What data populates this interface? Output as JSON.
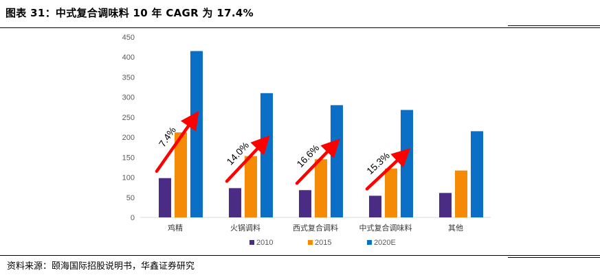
{
  "header": {
    "title": "图表 31：中式复合调味料 10 年 CAGR 为 17.4%"
  },
  "footer": {
    "source": "资料来源：颐海国际招股说明书，华鑫证券研究"
  },
  "colors": {
    "s2010": "#4B2C84",
    "s2015": "#F58A07",
    "s2020E": "#0B6FC6",
    "arrow": "#FF0000"
  },
  "chart_data": {
    "type": "bar",
    "categories": [
      "鸡精",
      "火锅调料",
      "西式复合调料",
      "中式复合调味料",
      "其他"
    ],
    "series": [
      {
        "name": "2010",
        "values": [
          98,
          73,
          68,
          54,
          61
        ]
      },
      {
        "name": "2015",
        "values": [
          212,
          153,
          145,
          122,
          117
        ]
      },
      {
        "name": "2020E",
        "values": [
          415,
          310,
          280,
          268,
          215
        ]
      }
    ],
    "ylim": [
      0,
      450
    ],
    "yticks": [
      0,
      50,
      100,
      150,
      200,
      250,
      300,
      350,
      400,
      450
    ],
    "grid": false,
    "legend_position": "bottom",
    "annotations": [
      {
        "category": "鸡精",
        "label": "7.4%"
      },
      {
        "category": "火锅调料",
        "label": "14.0%"
      },
      {
        "category": "西式复合调料",
        "label": "16.6%"
      },
      {
        "category": "中式复合调味料",
        "label": "15.3%"
      }
    ]
  }
}
